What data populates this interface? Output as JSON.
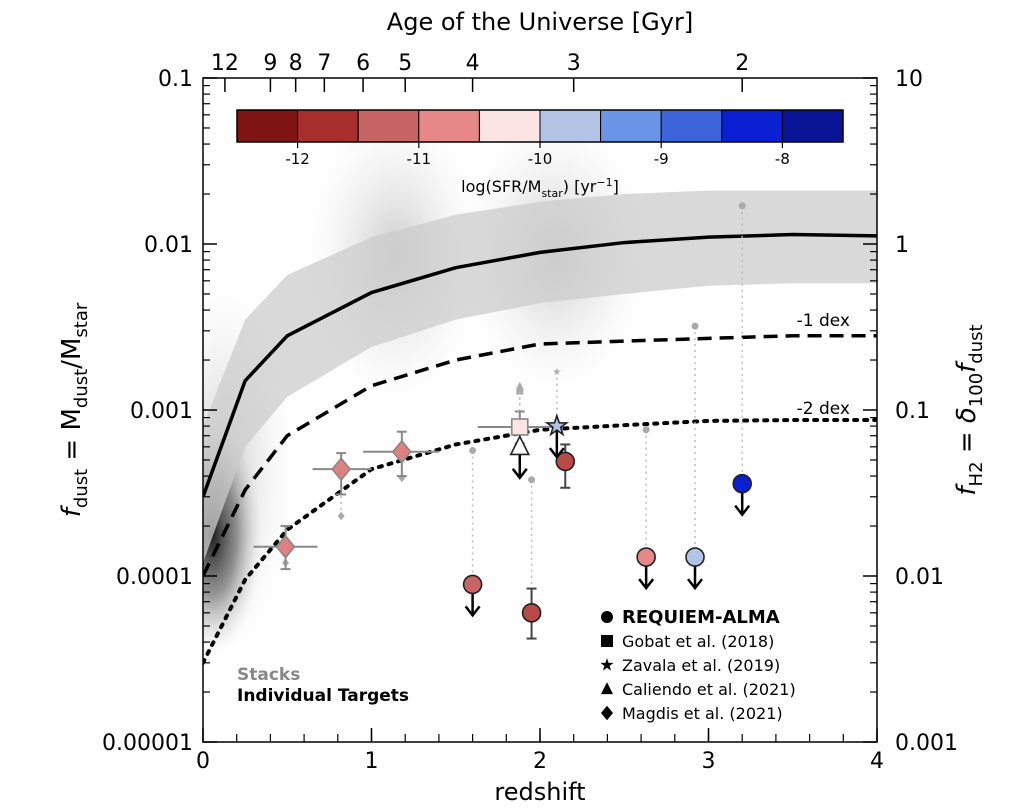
{
  "chart_data": {
    "type": "scatter",
    "title": "Age of the Universe [Gyr]",
    "xlabel": "redshift",
    "ylabel": [
      "f",
      "dust",
      " = M",
      "dust",
      "/M",
      "star"
    ],
    "y2label": [
      "f",
      "H2",
      " = ",
      "δ",
      "100",
      "f",
      "dust"
    ],
    "log_y": true,
    "xlim": [
      0,
      4
    ],
    "xticks": [
      0,
      1,
      2,
      3,
      4
    ],
    "ylim": [
      1e-05,
      0.1
    ],
    "yticks": [
      1e-05,
      0.0001,
      0.001,
      0.01,
      0.1
    ],
    "y2lim": [
      0.001,
      10
    ],
    "y2ticks": [
      0.001,
      0.01,
      0.1,
      1,
      10
    ],
    "x2ticks_age": [
      12,
      9,
      8,
      7,
      6,
      5,
      4,
      3,
      2
    ],
    "x2ticks_z": [
      0.13,
      0.4,
      0.55,
      0.72,
      0.95,
      1.2,
      1.6,
      2.2,
      3.2
    ],
    "colorbar": {
      "label": [
        "log(SFR/M",
        "star",
        ") [yr",
        "−1",
        "]"
      ],
      "lim": [
        -12.5,
        -7.5
      ],
      "ticks": [
        -12,
        -11,
        -10,
        -9,
        -8
      ],
      "colors": [
        "#7f1414",
        "#a82e2e",
        "#c86464",
        "#e68888",
        "#fae4e4",
        "#b4c4e6",
        "#6a94e6",
        "#3e64dc",
        "#0a1ed2",
        "#0a1496"
      ]
    },
    "curves": [
      {
        "style": "solid",
        "x": [
          0,
          0.25,
          0.5,
          1,
          1.5,
          2,
          2.5,
          3,
          3.5,
          4
        ],
        "values": [
          0.0003,
          0.0015,
          0.0028,
          0.0051,
          0.0072,
          0.0089,
          0.0102,
          0.011,
          0.0114,
          0.0112
        ]
      },
      {
        "style": "dashed",
        "x": [
          0,
          0.25,
          0.5,
          1,
          1.5,
          2,
          2.5,
          3,
          3.5,
          4
        ],
        "values": [
          0.0001,
          0.00033,
          0.0007,
          0.0014,
          0.002,
          0.0025,
          0.0026,
          0.0027,
          0.0028,
          0.0028
        ]
      },
      {
        "style": "dotted",
        "x": [
          0,
          0.25,
          0.5,
          1,
          1.5,
          2,
          2.5,
          3,
          3.5,
          4
        ],
        "values": [
          3e-05,
          9.5e-05,
          0.00019,
          0.00044,
          0.00062,
          0.00076,
          0.00081,
          0.00086,
          0.00087,
          0.00087
        ]
      }
    ],
    "band": {
      "x": [
        0,
        0.25,
        0.5,
        1,
        1.5,
        2,
        2.5,
        3,
        3.5,
        4
      ],
      "upper": [
        0.0008,
        0.0035,
        0.0065,
        0.011,
        0.015,
        0.018,
        0.02,
        0.021,
        0.021,
        0.021
      ],
      "lower": [
        0.00012,
        0.0006,
        0.0012,
        0.0024,
        0.0035,
        0.0044,
        0.005,
        0.0056,
        0.0058,
        0.0058
      ]
    },
    "annotations": [
      "-1 dex",
      "-2 dex"
    ],
    "legend": {
      "group_labels": [
        "Stacks",
        "Individual Targets"
      ]
    },
    "series": [
      {
        "name": "REQUIEM-ALMA",
        "marker": "circle",
        "points": [
          {
            "x": 1.6,
            "y": 8.9e-05,
            "color": "#c86464",
            "upper_limit": true
          },
          {
            "x": 1.95,
            "y": 6e-05,
            "color": "#b94a48",
            "upper_limit": false,
            "yerr": [
              4.2e-05,
              8.4e-05
            ]
          },
          {
            "x": 2.15,
            "y": 0.00049,
            "color": "#b94a48",
            "upper_limit": false,
            "yerr": [
              0.00034,
              0.00062
            ]
          },
          {
            "x": 2.63,
            "y": 0.00013,
            "color": "#e68888",
            "upper_limit": true
          },
          {
            "x": 2.92,
            "y": 0.00013,
            "color": "#b4c4e6",
            "upper_limit": true
          },
          {
            "x": 3.2,
            "y": 0.00036,
            "color": "#0a1ed2",
            "upper_limit": true
          }
        ],
        "stacks": [
          {
            "x": 1.6,
            "y": 0.00057
          },
          {
            "x": 1.95,
            "y": 0.00038
          },
          {
            "x": 2.63,
            "y": 0.00076
          },
          {
            "x": 2.92,
            "y": 0.0032
          },
          {
            "x": 3.2,
            "y": 0.017
          }
        ]
      },
      {
        "name": "Gobat et al. (2018)",
        "marker": "square",
        "points": [
          {
            "x": 1.88,
            "y": 0.00079,
            "color": "#fae4e4",
            "upper_limit": false,
            "xerr": [
              1.63,
              2.13
            ],
            "yerr": [
              0.00063,
              0.00098
            ]
          }
        ],
        "stacks": [
          {
            "x": 1.88,
            "y": 0.0013
          }
        ]
      },
      {
        "name": "Zavala et al. (2019)",
        "marker": "star",
        "points": [
          {
            "x": 2.1,
            "y": 0.0008,
            "color": "#b4c4e6",
            "upper_limit": true
          }
        ],
        "stacks": [
          {
            "x": 2.1,
            "y": 0.0017
          }
        ]
      },
      {
        "name": "Caliendo et al. (2021)",
        "marker": "triangle",
        "points": [
          {
            "x": 1.88,
            "y": 0.0006,
            "color": "#ffffff",
            "upper_limit": true
          }
        ],
        "stacks": [
          {
            "x": 1.88,
            "y": 0.0014
          }
        ]
      },
      {
        "name": "Magdis et al. (2021)",
        "marker": "diamond",
        "points": [
          {
            "x": 0.49,
            "y": 0.00015,
            "color": "#e08080",
            "upper_limit": false,
            "xerr": [
              0.3,
              0.68
            ],
            "yerr": [
              0.00011,
              0.0002
            ]
          },
          {
            "x": 0.82,
            "y": 0.00044,
            "color": "#e08080",
            "upper_limit": false,
            "xerr": [
              0.65,
              1.0
            ],
            "yerr": [
              0.00031,
              0.00055
            ]
          },
          {
            "x": 1.18,
            "y": 0.00056,
            "color": "#e08080",
            "upper_limit": false,
            "xerr": [
              0.95,
              1.4
            ],
            "yerr": [
              0.0004,
              0.00074
            ]
          }
        ],
        "stacks": [
          {
            "x": 0.49,
            "y": 0.00012
          },
          {
            "x": 0.82,
            "y": 0.00023
          },
          {
            "x": 1.18,
            "y": 0.00039
          }
        ]
      }
    ]
  }
}
